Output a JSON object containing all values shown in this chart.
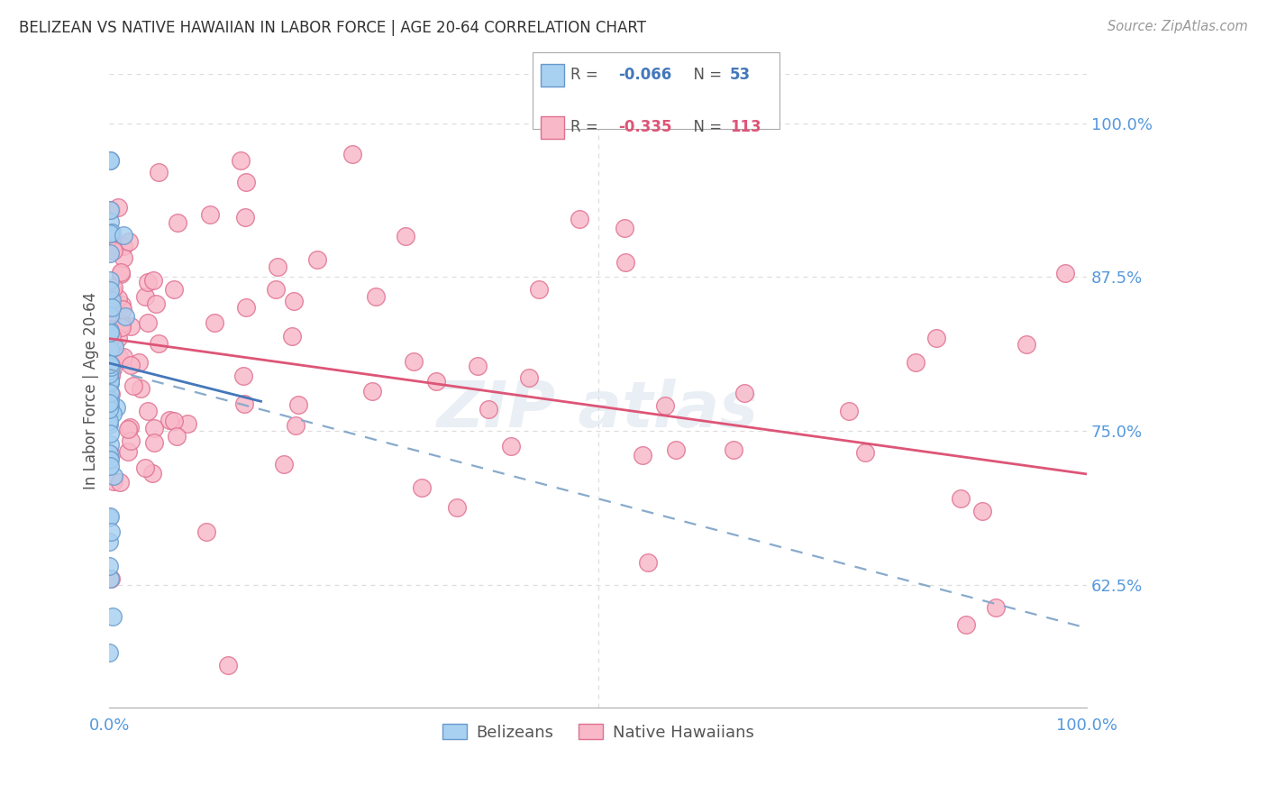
{
  "title": "BELIZEAN VS NATIVE HAWAIIAN IN LABOR FORCE | AGE 20-64 CORRELATION CHART",
  "source": "Source: ZipAtlas.com",
  "ylabel": "In Labor Force | Age 20-64",
  "right_ytick_labels": [
    "100.0%",
    "87.5%",
    "75.0%",
    "62.5%"
  ],
  "right_ytick_values": [
    1.0,
    0.875,
    0.75,
    0.625
  ],
  "xlim": [
    0.0,
    1.0
  ],
  "ylim": [
    0.525,
    1.04
  ],
  "legend_R1": "-0.066",
  "legend_N1": "53",
  "legend_R2": "-0.335",
  "legend_N2": "113",
  "color_blue_fill": "#a8d0f0",
  "color_blue_edge": "#6699cc",
  "color_pink_fill": "#f8b8c8",
  "color_pink_edge": "#e07090",
  "color_blue_line": "#4477bb",
  "color_pink_line": "#dd5577",
  "color_dashed": "#88aacc",
  "color_axis_labels": "#5599dd",
  "color_title": "#333333",
  "background_color": "#ffffff",
  "grid_color": "#dddddd",
  "blue_line_x0": 0.0,
  "blue_line_y0": 0.805,
  "blue_line_x1": 0.15,
  "blue_line_y1": 0.775,
  "pink_line_x0": 0.0,
  "pink_line_y0": 0.825,
  "pink_line_x1": 1.0,
  "pink_line_y1": 0.715,
  "dash_line_x0": 0.0,
  "dash_line_y0": 0.8,
  "dash_line_x1": 1.0,
  "dash_line_y1": 0.59
}
